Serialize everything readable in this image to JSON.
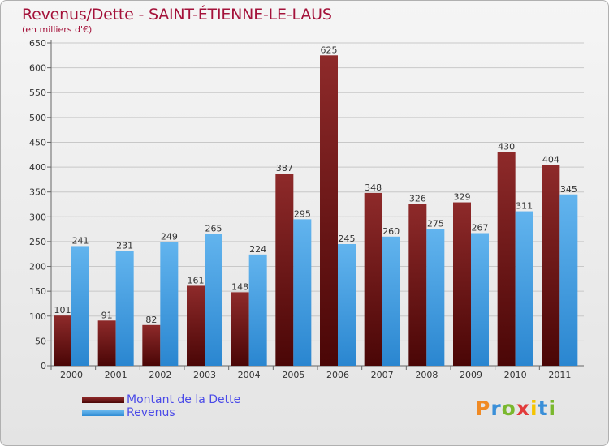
{
  "title": "Revenus/Dette - SAINT-ÉTIENNE-LE-LAUS",
  "subtitle": "(en milliers d'€)",
  "logo": {
    "text": "Proxiti",
    "colors": [
      "#f08a24",
      "#3a8fd8",
      "#7ab82e",
      "#e23b3b",
      "#f5c400",
      "#3a8fd8",
      "#7ab82e"
    ]
  },
  "chart_data": {
    "type": "bar",
    "categories": [
      "2000",
      "2001",
      "2002",
      "2003",
      "2004",
      "2005",
      "2006",
      "2007",
      "2008",
      "2009",
      "2010",
      "2011"
    ],
    "series": [
      {
        "name": "Montant de la Dette",
        "color": "#7a1a1a",
        "values": [
          101,
          91,
          82,
          161,
          148,
          387,
          625,
          348,
          326,
          329,
          430,
          404
        ]
      },
      {
        "name": "Revenus",
        "color": "#3f9fe5",
        "values": [
          241,
          231,
          249,
          265,
          224,
          295,
          245,
          260,
          275,
          267,
          311,
          345
        ]
      }
    ],
    "ylim": [
      0,
      650
    ],
    "yticks": [
      "0",
      "50",
      "100",
      "150",
      "200",
      "250",
      "300",
      "350",
      "400",
      "450",
      "500",
      "550",
      "600",
      "650"
    ],
    "grid": true,
    "legend": "bottom-left"
  }
}
